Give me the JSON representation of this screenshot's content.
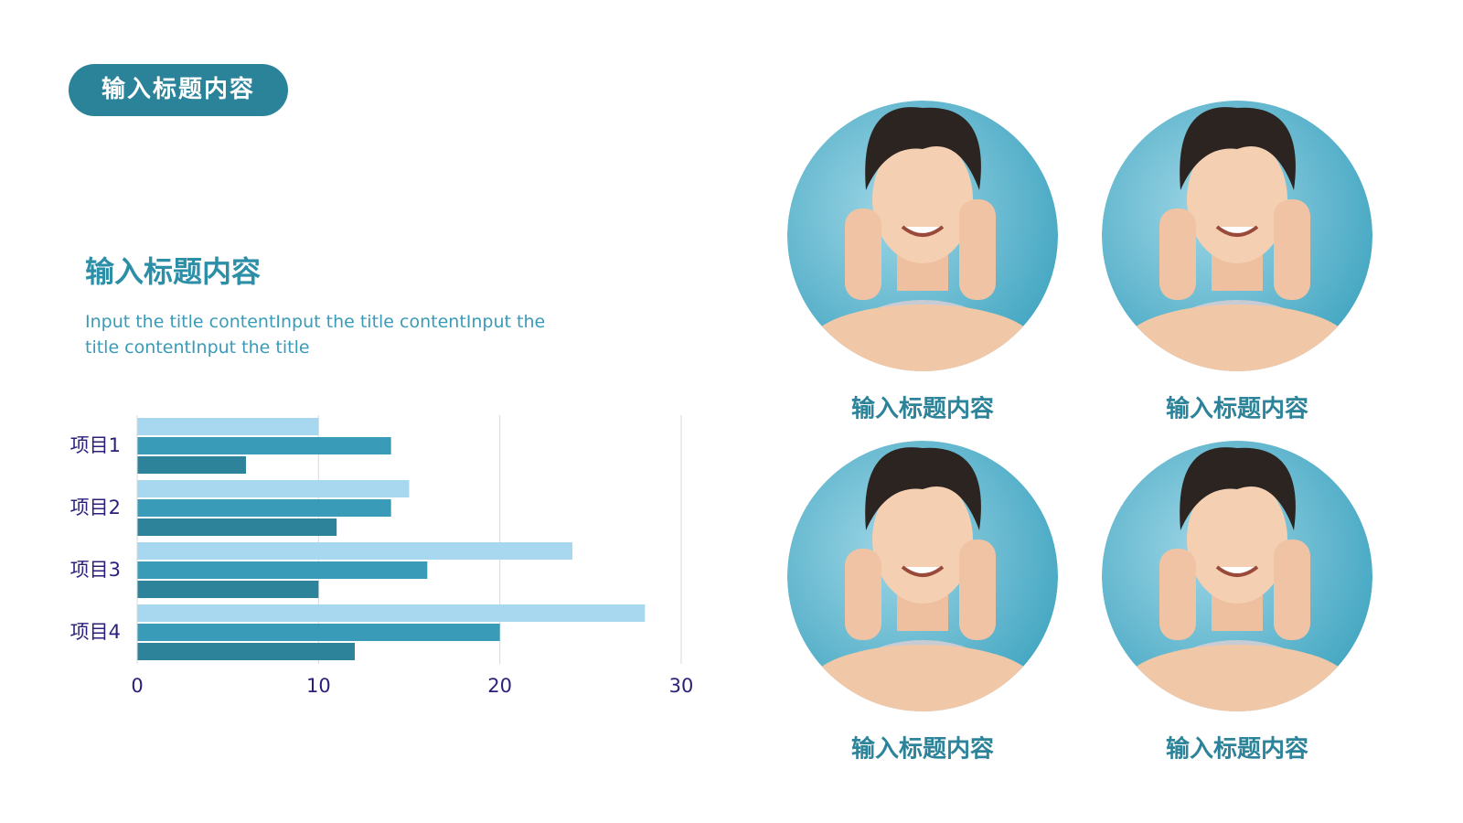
{
  "header": {
    "title": "输入标题内容"
  },
  "section": {
    "title": "输入标题内容",
    "body": "Input the title contentInput the title contentInput the title contentInput the title"
  },
  "chart_data": {
    "type": "bar",
    "orientation": "horizontal",
    "categories": [
      "项目1",
      "项目2",
      "项目3",
      "项目4"
    ],
    "series": [
      {
        "color": "#a8d8ef",
        "values": [
          10,
          15,
          24,
          28
        ]
      },
      {
        "color": "#3a9bb8",
        "values": [
          14,
          14,
          16,
          20
        ]
      },
      {
        "color": "#2d8399",
        "values": [
          6,
          11,
          10,
          12
        ]
      }
    ],
    "xlim": [
      0,
      30
    ],
    "xticks": [
      0,
      10,
      20,
      30
    ],
    "grid": true
  },
  "photos": [
    {
      "caption": "输入标题内容"
    },
    {
      "caption": "输入标题内容"
    },
    {
      "caption": "输入标题内容"
    },
    {
      "caption": "输入标题内容"
    }
  ]
}
